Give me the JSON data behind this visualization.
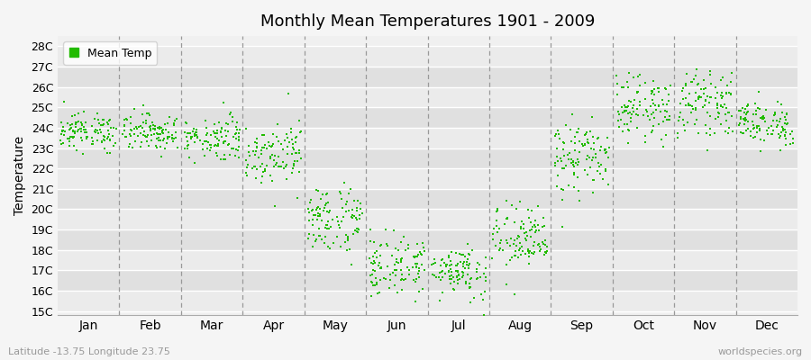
{
  "title": "Monthly Mean Temperatures 1901 - 2009",
  "ylabel": "Temperature",
  "subtitle_left": "Latitude -13.75 Longitude 23.75",
  "subtitle_right": "worldspecies.org",
  "legend_label": "Mean Temp",
  "dot_color": "#22bb00",
  "background_color": "#f5f5f5",
  "plot_bg_light": "#f0f0f0",
  "plot_bg_dark": "#e2e2e2",
  "ytick_labels": [
    "15C",
    "16C",
    "17C",
    "18C",
    "19C",
    "20C",
    "21C",
    "22C",
    "23C",
    "24C",
    "25C",
    "26C",
    "27C",
    "28C"
  ],
  "ytick_values": [
    15,
    16,
    17,
    18,
    19,
    20,
    21,
    22,
    23,
    24,
    25,
    26,
    27,
    28
  ],
  "ylim": [
    14.8,
    28.5
  ],
  "months": [
    "Jan",
    "Feb",
    "Mar",
    "Apr",
    "May",
    "Jun",
    "Jul",
    "Aug",
    "Sep",
    "Oct",
    "Nov",
    "Dec"
  ],
  "n_years": 109,
  "monthly_mean": [
    23.8,
    23.8,
    23.5,
    22.8,
    19.5,
    17.2,
    17.0,
    18.5,
    22.5,
    25.0,
    25.2,
    24.2
  ],
  "monthly_std": [
    0.45,
    0.45,
    0.55,
    0.75,
    0.85,
    0.75,
    0.65,
    0.85,
    0.9,
    0.75,
    0.75,
    0.55
  ],
  "dot_size": 4,
  "grid_color": "#bbbbbb",
  "vline_color": "#999999",
  "font_family": "DejaVu Sans"
}
